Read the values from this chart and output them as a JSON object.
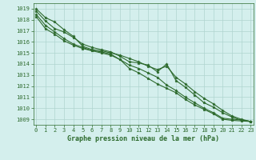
{
  "x": [
    0,
    1,
    2,
    3,
    4,
    5,
    6,
    7,
    8,
    9,
    10,
    11,
    12,
    13,
    14,
    15,
    16,
    17,
    18,
    19,
    20,
    21,
    22,
    23
  ],
  "series": [
    [
      1019.0,
      1018.2,
      1017.8,
      1017.1,
      1016.5,
      1015.6,
      1015.3,
      1015.2,
      1015.0,
      1014.8,
      1014.5,
      1014.2,
      1013.8,
      1013.5,
      1013.8,
      1012.8,
      1012.2,
      1011.5,
      1010.9,
      1010.4,
      1009.8,
      1009.3,
      1009.0,
      1008.8
    ],
    [
      1018.8,
      1017.9,
      1017.2,
      1016.9,
      1016.4,
      1015.8,
      1015.5,
      1015.3,
      1015.1,
      1014.7,
      1014.2,
      1014.1,
      1013.9,
      1013.3,
      1014.0,
      1012.5,
      1011.9,
      1011.2,
      1010.5,
      1010.1,
      1009.6,
      1009.2,
      1008.9,
      1008.8
    ],
    [
      1018.5,
      1017.5,
      1016.9,
      1016.3,
      1015.8,
      1015.5,
      1015.2,
      1015.1,
      1014.9,
      1014.4,
      1013.9,
      1013.6,
      1013.2,
      1012.8,
      1012.1,
      1011.6,
      1011.0,
      1010.5,
      1010.0,
      1009.6,
      1009.1,
      1009.0,
      1008.95,
      1008.8
    ],
    [
      1018.3,
      1017.2,
      1016.7,
      1016.1,
      1015.7,
      1015.4,
      1015.2,
      1015.0,
      1014.8,
      1014.4,
      1013.6,
      1013.2,
      1012.7,
      1012.2,
      1011.8,
      1011.4,
      1010.8,
      1010.3,
      1009.9,
      1009.5,
      1009.0,
      1008.9,
      1008.85,
      1008.8
    ]
  ],
  "line_color": "#2d6a2d",
  "marker": "*",
  "bg_color": "#d4efed",
  "grid_color": "#afd4d0",
  "ylabel_ticks": [
    1009,
    1010,
    1011,
    1012,
    1013,
    1014,
    1015,
    1016,
    1017,
    1018,
    1019
  ],
  "xlabel_ticks": [
    0,
    1,
    2,
    3,
    4,
    5,
    6,
    7,
    8,
    9,
    10,
    11,
    12,
    13,
    14,
    15,
    16,
    17,
    18,
    19,
    20,
    21,
    22,
    23
  ],
  "xlabel": "Graphe pression niveau de la mer (hPa)",
  "ylim": [
    1008.5,
    1019.5
  ],
  "xlim": [
    -0.3,
    23.3
  ],
  "tick_fontsize": 5,
  "xlabel_fontsize": 6,
  "linewidth": 0.8,
  "markersize": 2.5
}
